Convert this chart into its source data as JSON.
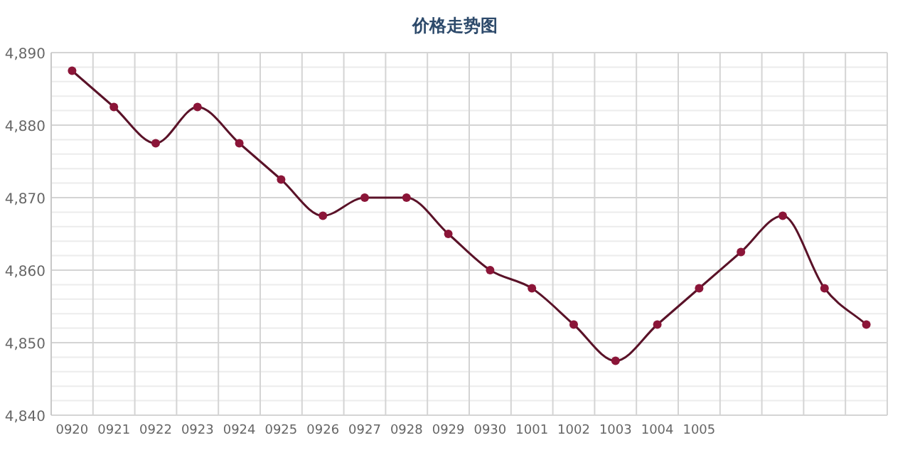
{
  "chart_data": {
    "type": "line",
    "title": "价格走势图",
    "categories": [
      "0920",
      "0921",
      "0922",
      "0923",
      "0924",
      "0925",
      "0926",
      "0927",
      "0928",
      "0929",
      "0930",
      "1001",
      "1002",
      "1003",
      "1004",
      "1005",
      null,
      null,
      null,
      null
    ],
    "series": [
      {
        "color": "#8b1538",
        "values": [
          4887.5,
          4882.5,
          4877.5,
          4882.5,
          4877.5,
          4872.5,
          4867.5,
          4870,
          4870,
          4865,
          4860,
          4857.5,
          4852.5,
          4847.5,
          4852.5,
          4857.5,
          4862.5,
          4867.5,
          4857.5,
          4852.5
        ]
      }
    ],
    "ylim": [
      4840,
      4890
    ],
    "yticks": [
      {
        "value": 4840,
        "label": "4,840"
      },
      {
        "value": 4842,
        "label": null
      },
      {
        "value": 4844,
        "label": null
      },
      {
        "value": 4846,
        "label": null
      },
      {
        "value": 4848,
        "label": null
      },
      {
        "value": 4850,
        "label": "4,850"
      },
      {
        "value": 4852,
        "label": null
      },
      {
        "value": 4854,
        "label": null
      },
      {
        "value": 4856,
        "label": null
      },
      {
        "value": 4858,
        "label": null
      },
      {
        "value": 4860,
        "label": "4,860"
      },
      {
        "value": 4862,
        "label": null
      },
      {
        "value": 4864,
        "label": null
      },
      {
        "value": 4866,
        "label": null
      },
      {
        "value": 4868,
        "label": null
      },
      {
        "value": 4870,
        "label": "4,870"
      },
      {
        "value": 4872,
        "label": null
      },
      {
        "value": 4874,
        "label": null
      },
      {
        "value": 4876,
        "label": null
      },
      {
        "value": 4878,
        "label": null
      },
      {
        "value": 4880,
        "label": "4,880"
      },
      {
        "value": 4882,
        "label": null
      },
      {
        "value": 4884,
        "label": null
      },
      {
        "value": 4886,
        "label": null
      },
      {
        "value": 4888,
        "label": null
      },
      {
        "value": 4890,
        "label": "4,890"
      }
    ],
    "grid": true,
    "marker": "circle",
    "line_style": "solid"
  }
}
